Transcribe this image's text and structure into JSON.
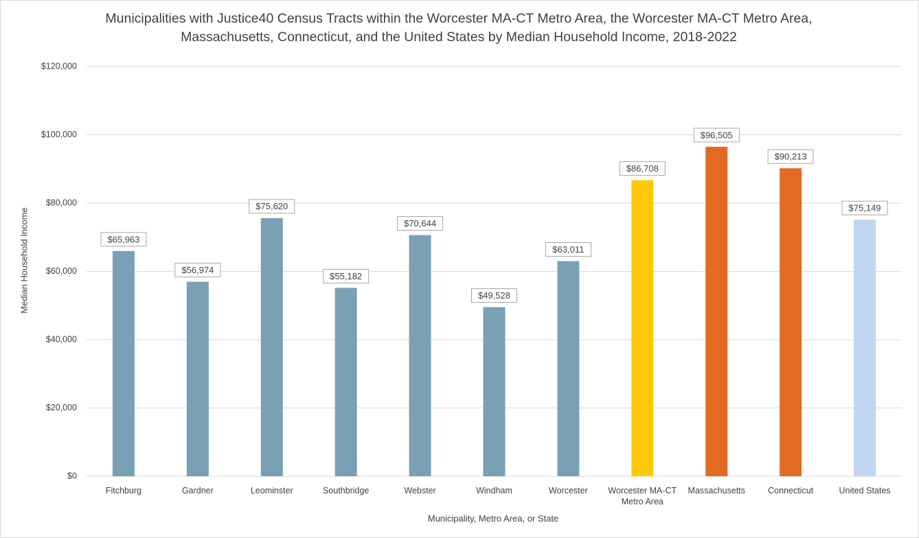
{
  "chart_data": {
    "type": "bar",
    "title": "Municipalities with Justice40 Census Tracts within the Worcester MA-CT Metro Area, the Worcester MA-CT Metro Area, Massachusetts, Connecticut, and the United States by Median Household Income, 2018-2022",
    "x_label": "Municipality, Metro Area, or State",
    "y_label": "Median Household Income",
    "categories": [
      "Fitchburg",
      "Gardner",
      "Leominster",
      "Southbridge",
      "Webster",
      "Windham",
      "Worcester",
      "Worcester MA-CT Metro Area",
      "Massachusetts",
      "Connecticut",
      "United States"
    ],
    "values": [
      65963,
      56974,
      75620,
      55182,
      70644,
      49528,
      63011,
      86708,
      96505,
      90213,
      75149
    ],
    "value_labels": [
      "$65,963",
      "$56,974",
      "$75,620",
      "$55,182",
      "$70,644",
      "$49,528",
      "$63,011",
      "$86,708",
      "$96,505",
      "$90,213",
      "$75,149"
    ],
    "colors": [
      "#7aa0b4",
      "#7aa0b4",
      "#7aa0b4",
      "#7aa0b4",
      "#7aa0b4",
      "#7aa0b4",
      "#7aa0b4",
      "#ffc90a",
      "#e26b23",
      "#e26b23",
      "#c0d5f0"
    ],
    "ylim": [
      0,
      120000
    ],
    "yticks": [
      {
        "value": 0,
        "label": "$0"
      },
      {
        "value": 20000,
        "label": "$20,000"
      },
      {
        "value": 40000,
        "label": "$40,000"
      },
      {
        "value": 60000,
        "label": "$60,000"
      },
      {
        "value": 80000,
        "label": "$80,000"
      },
      {
        "value": 100000,
        "label": "$100,000"
      },
      {
        "value": 120000,
        "label": "$120,000"
      }
    ],
    "grid": true
  }
}
